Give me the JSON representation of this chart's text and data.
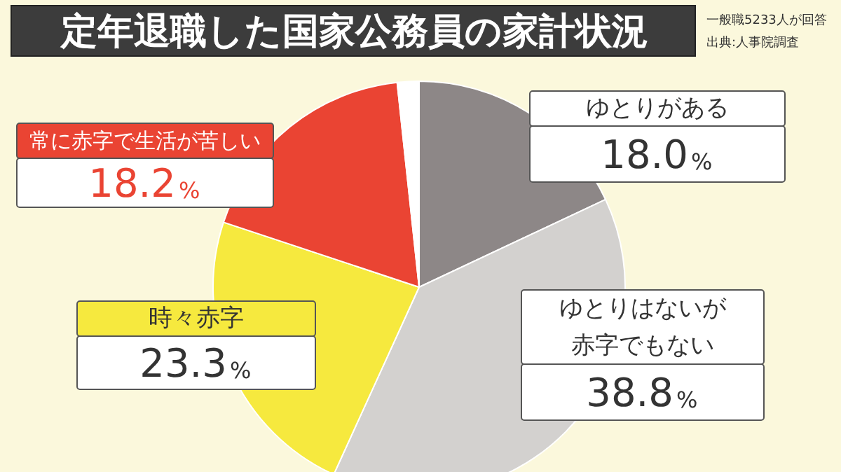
{
  "chart_data": {
    "type": "pie",
    "title": "定年退職した国家公務員の家計状況",
    "annotations": [
      "一般職5233人が回答",
      "出典:人事院調査"
    ],
    "categories": [
      "ゆとりがある",
      "ゆとりはないが赤字でもない",
      "時々赤字",
      "常に赤字で生活が苦しい",
      null
    ],
    "values": [
      18.0,
      38.8,
      23.3,
      18.2,
      1.7
    ],
    "colors": [
      "#8d8787",
      "#d3d1cf",
      "#f6e93e",
      "#ea4433",
      "#ffffff"
    ],
    "value_labels": [
      "18.0%",
      "38.8%",
      "23.3%",
      "18.2%",
      null
    ]
  }
}
